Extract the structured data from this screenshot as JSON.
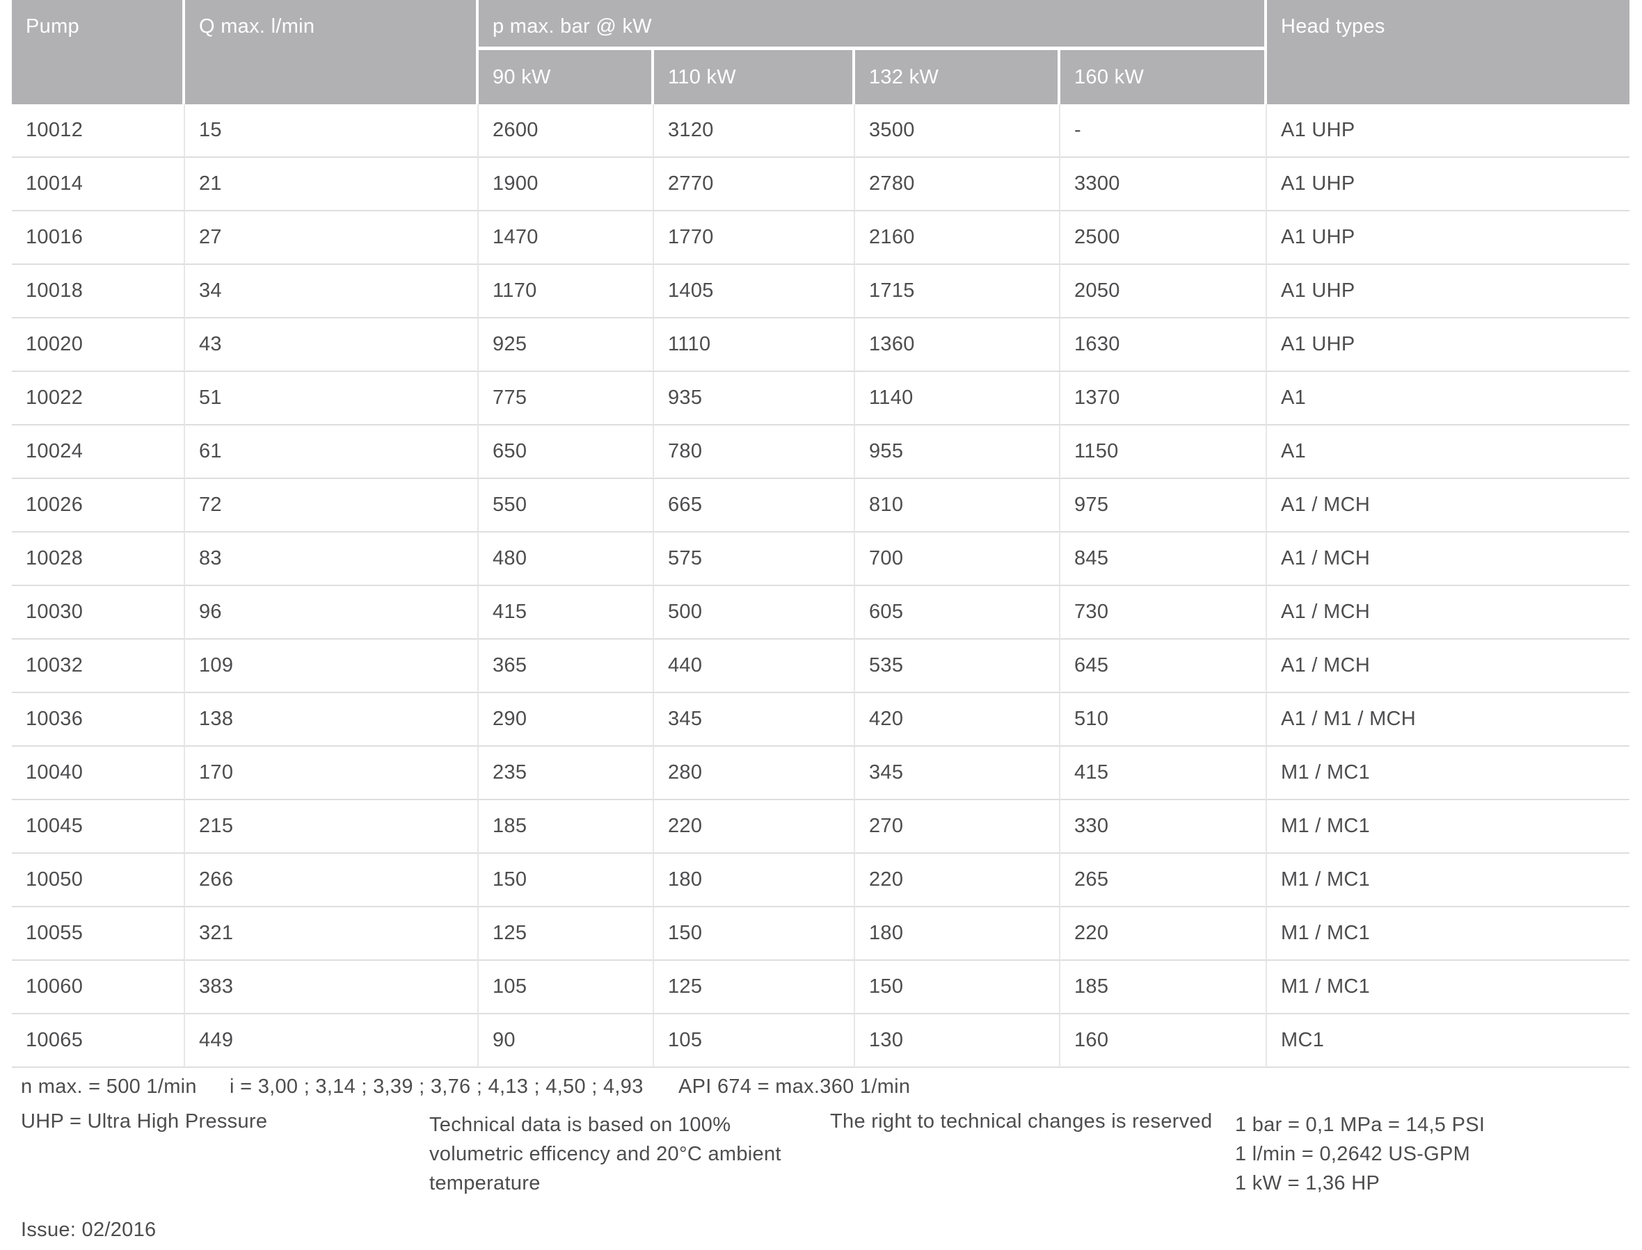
{
  "table": {
    "headers": {
      "pump": "Pump",
      "q_max": "Q max. l/min",
      "p_max_group": "p max. bar @ kW",
      "power_columns": [
        "90 kW",
        "110 kW",
        "132 kW",
        "160 kW"
      ],
      "head_types": "Head types"
    },
    "rows": [
      [
        "10012",
        "15",
        "2600",
        "3120",
        "3500",
        "-",
        "A1 UHP"
      ],
      [
        "10014",
        "21",
        "1900",
        "2770",
        "2780",
        "3300",
        "A1 UHP"
      ],
      [
        "10016",
        "27",
        "1470",
        "1770",
        "2160",
        "2500",
        "A1 UHP"
      ],
      [
        "10018",
        "34",
        "1170",
        "1405",
        "1715",
        "2050",
        "A1 UHP"
      ],
      [
        "10020",
        "43",
        "925",
        "1110",
        "1360",
        "1630",
        "A1 UHP"
      ],
      [
        "10022",
        "51",
        "775",
        "935",
        "1140",
        "1370",
        "A1"
      ],
      [
        "10024",
        "61",
        "650",
        "780",
        "955",
        "1150",
        "A1"
      ],
      [
        "10026",
        "72",
        "550",
        "665",
        "810",
        "975",
        "A1 / MCH"
      ],
      [
        "10028",
        "83",
        "480",
        "575",
        "700",
        "845",
        "A1 / MCH"
      ],
      [
        "10030",
        "96",
        "415",
        "500",
        "605",
        "730",
        "A1 / MCH"
      ],
      [
        "10032",
        "109",
        "365",
        "440",
        "535",
        "645",
        "A1 / MCH"
      ],
      [
        "10036",
        "138",
        "290",
        "345",
        "420",
        "510",
        "A1 / M1 / MCH"
      ],
      [
        "10040",
        "170",
        "235",
        "280",
        "345",
        "415",
        "M1 / MC1"
      ],
      [
        "10045",
        "215",
        "185",
        "220",
        "270",
        "330",
        "M1 / MC1"
      ],
      [
        "10050",
        "266",
        "150",
        "180",
        "220",
        "265",
        "M1 / MC1"
      ],
      [
        "10055",
        "321",
        "125",
        "150",
        "180",
        "220",
        "M1 / MC1"
      ],
      [
        "10060",
        "383",
        "105",
        "125",
        "150",
        "185",
        "M1 / MC1"
      ],
      [
        "10065",
        "449",
        "90",
        "105",
        "130",
        "160",
        "MC1"
      ]
    ]
  },
  "notes": {
    "n_max": "n max. = 500 1/min",
    "i_ratios": "i = 3,00 ; 3,14 ; 3,39 ; 3,76 ; 4,13 ; 4,50 ; 4,93",
    "api": "API 674 = max.360 1/min",
    "uhp": "UHP = Ultra High Pressure",
    "technical_lines": [
      "Technical data is based on 100%",
      "volumetric efficency and 20°C ambient",
      "temperature"
    ],
    "rights": "The right to technical changes is reserved",
    "conversions": [
      "1 bar = 0,1 MPa = 14,5 PSI",
      "1 l/min = 0,2642 US-GPM",
      "1 kW = 1,36 HP"
    ]
  },
  "issue": "Issue: 02/2016",
  "colors": {
    "header_bg": "#b1b1b3",
    "header_text": "#ffffff",
    "body_text": "#4d4d4f",
    "row_line": "#dedede",
    "column_line": "#e7e7e7"
  }
}
